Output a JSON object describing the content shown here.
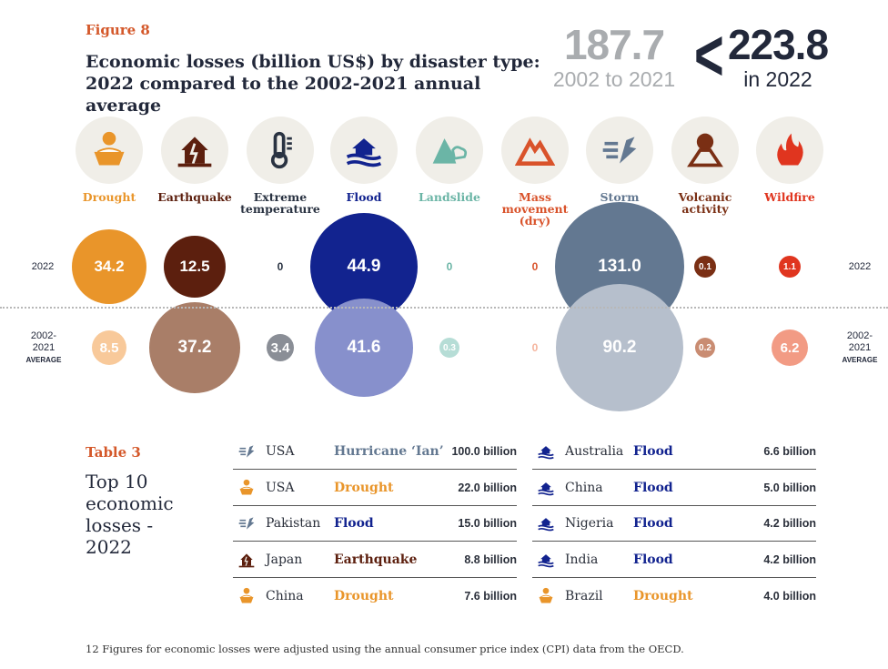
{
  "figure": {
    "label": "Figure 8",
    "title_line1": "Economic losses (billion US$) by disaster type:",
    "title_line2": "2022 compared to the 2002-2021 annual average"
  },
  "summary": {
    "average_value": "187.7",
    "average_period": "2002 to 2021",
    "comparison_symbol": "<",
    "current_value": "223.8",
    "current_period": "in 2022"
  },
  "row_labels": {
    "current": "2022",
    "average_line1": "2002-",
    "average_line2": "2021",
    "average_line3": "AVERAGE"
  },
  "chart_data": {
    "type": "bubble",
    "categories": [
      "Drought",
      "Earthquake",
      "Extreme temperature",
      "Flood",
      "Landslide",
      "Mass movement (dry)",
      "Storm",
      "Volcanic activity",
      "Wildfire"
    ],
    "series": [
      {
        "name": "2022",
        "values": [
          34.2,
          12.5,
          0,
          44.9,
          0,
          0,
          131.0,
          0.1,
          1.1
        ]
      },
      {
        "name": "2002-2021 AVERAGE",
        "values": [
          8.5,
          37.2,
          3.4,
          41.6,
          0.3,
          0,
          90.2,
          0.2,
          6.2
        ]
      }
    ]
  },
  "disasters": [
    {
      "label": "Drought",
      "icon": "drought-icon",
      "color": "#e9952a",
      "color_avg": "#f8c99a",
      "v2022": "34.2",
      "vavg": "8.5"
    },
    {
      "label": "Earthquake",
      "icon": "earthquake-icon",
      "color": "#5c1f0e",
      "color_avg": "#a97e68",
      "v2022": "12.5",
      "vavg": "37.2"
    },
    {
      "label": "Extreme temperature",
      "icon": "thermometer-icon",
      "color": "#2a3342",
      "color_avg": "#8a8e96",
      "v2022": "0",
      "vavg": "3.4"
    },
    {
      "label": "Flood",
      "icon": "flood-icon",
      "color": "#12238f",
      "color_avg": "#8790cc",
      "v2022": "44.9",
      "vavg": "41.6"
    },
    {
      "label": "Landslide",
      "icon": "landslide-icon",
      "color": "#6bb5a6",
      "color_avg": "#b6ddd6",
      "v2022": "0",
      "vavg": "0.3"
    },
    {
      "label": "Mass movement (dry)",
      "icon": "mountain-icon",
      "color": "#d9532b",
      "color_avg": "#f5b49d",
      "v2022": "0",
      "vavg": "0"
    },
    {
      "label": "Storm",
      "icon": "storm-icon",
      "color": "#637891",
      "color_avg": "#b6bfcc",
      "v2022": "131.0",
      "vavg": "90.2"
    },
    {
      "label": "Volcanic activity",
      "icon": "volcano-icon",
      "color": "#7a2f14",
      "color_avg": "#c98c72",
      "v2022": "0.1",
      "vavg": "0.2"
    },
    {
      "label": "Wildfire",
      "icon": "wildfire-icon",
      "color": "#e0351f",
      "color_avg": "#f29b84",
      "v2022": "1.1",
      "vavg": "6.2"
    }
  ],
  "table": {
    "label": "Table 3",
    "title": "Top 10 economic losses - 2022",
    "rows": [
      {
        "icon": "storm-icon",
        "country": "USA",
        "type": "Hurricane ‘Ian’",
        "type_color": "#637891",
        "value": "100.0 billion"
      },
      {
        "icon": "drought-icon",
        "country": "USA",
        "type": "Drought",
        "type_color": "#e9952a",
        "value": "22.0 billion"
      },
      {
        "icon": "storm-icon",
        "country": "Pakistan",
        "type": "Flood",
        "type_color": "#12238f",
        "value": "15.0 billion"
      },
      {
        "icon": "earthquake-icon",
        "country": "Japan",
        "type": "Earthquake",
        "type_color": "#5c1f0e",
        "value": "8.8 billion"
      },
      {
        "icon": "drought-icon",
        "country": "China",
        "type": "Drought",
        "type_color": "#e9952a",
        "value": "7.6 billion"
      },
      {
        "icon": "flood-icon",
        "country": "Australia",
        "type": "Flood",
        "type_color": "#12238f",
        "value": "6.6 billion"
      },
      {
        "icon": "flood-icon",
        "country": "China",
        "type": "Flood",
        "type_color": "#12238f",
        "value": "5.0 billion"
      },
      {
        "icon": "flood-icon",
        "country": "Nigeria",
        "type": "Flood",
        "type_color": "#12238f",
        "value": "4.2 billion"
      },
      {
        "icon": "flood-icon",
        "country": "India",
        "type": "Flood",
        "type_color": "#12238f",
        "value": "4.2 billion"
      },
      {
        "icon": "drought-icon",
        "country": "Brazil",
        "type": "Drought",
        "type_color": "#e9952a",
        "value": "4.0 billion"
      }
    ]
  },
  "footnote": "12   Figures for economic losses were adjusted using the annual consumer price index (CPI) data from the OECD."
}
